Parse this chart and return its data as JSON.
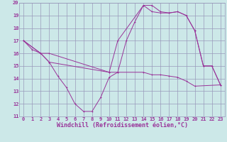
{
  "xlabel": "Windchill (Refroidissement éolien,°C)",
  "background_color": "#cce8e8",
  "grid_color": "#9999bb",
  "line_color": "#993399",
  "xlim": [
    -0.5,
    23.5
  ],
  "ylim": [
    11,
    20
  ],
  "xticks": [
    0,
    1,
    2,
    3,
    4,
    5,
    6,
    7,
    8,
    9,
    10,
    11,
    12,
    13,
    14,
    15,
    16,
    17,
    18,
    19,
    20,
    21,
    22,
    23
  ],
  "yticks": [
    11,
    12,
    13,
    14,
    15,
    16,
    17,
    18,
    19,
    20
  ],
  "line1_x": [
    0,
    1,
    2,
    3,
    4,
    5,
    6,
    7,
    8,
    9,
    10,
    11,
    12,
    13,
    14,
    15,
    16,
    17,
    18,
    19,
    20,
    21,
    22,
    23
  ],
  "line1_y": [
    17.0,
    16.3,
    16.0,
    15.3,
    14.2,
    13.3,
    12.0,
    11.4,
    11.4,
    12.5,
    14.1,
    14.5,
    17.0,
    18.5,
    19.8,
    19.8,
    19.3,
    19.2,
    19.3,
    19.0,
    17.8,
    15.0,
    15.0,
    13.5
  ],
  "line2_x": [
    0,
    2,
    3,
    10,
    11,
    14,
    15,
    16,
    17,
    18,
    19,
    20,
    21,
    22,
    23
  ],
  "line2_y": [
    17.0,
    16.0,
    16.0,
    14.5,
    17.0,
    19.8,
    19.3,
    19.2,
    19.2,
    19.3,
    19.0,
    17.8,
    15.0,
    15.0,
    13.5
  ],
  "line3_x": [
    0,
    2,
    3,
    10,
    11,
    14,
    15,
    16,
    17,
    18,
    19,
    20,
    23
  ],
  "line3_y": [
    17.0,
    16.0,
    15.3,
    14.5,
    14.5,
    14.5,
    14.3,
    14.3,
    14.2,
    14.1,
    13.8,
    13.4,
    13.5
  ],
  "tick_fontsize": 5.0,
  "xlabel_fontsize": 6.0,
  "linewidth": 0.7,
  "markersize": 2.0
}
